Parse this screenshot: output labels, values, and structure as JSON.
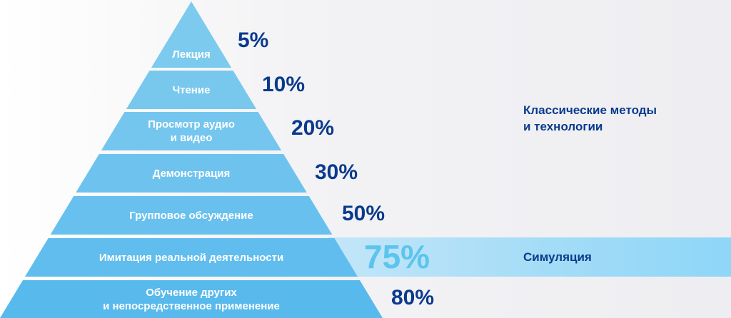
{
  "tiers": [
    {
      "label": "Лекция",
      "percent": "5%",
      "color": "#7ccaee"
    },
    {
      "label": "Чтение",
      "percent": "10%",
      "color": "#78c8ee"
    },
    {
      "label": "Просмотр аудио\nи видео",
      "percent": "20%",
      "color": "#74c6ee"
    },
    {
      "label": "Демонстрация",
      "percent": "30%",
      "color": "#6ec3ee"
    },
    {
      "label": "Групповое обсуждение",
      "percent": "50%",
      "color": "#68c0ee"
    },
    {
      "label": "Имитация реальной деятельности",
      "percent": "75%",
      "color": "#60bded"
    },
    {
      "label": "Обучение других\nи непосредственное применение",
      "percent": "80%",
      "color": "#58b9ec"
    }
  ],
  "groups": {
    "classic": "Классические методы\nи технологии",
    "simulation": "Симуляция"
  },
  "colors": {
    "accent_text": "#0a3a8c",
    "highlight_percent": "#5cc4ee",
    "simulation_band": "#a3dcf7"
  }
}
